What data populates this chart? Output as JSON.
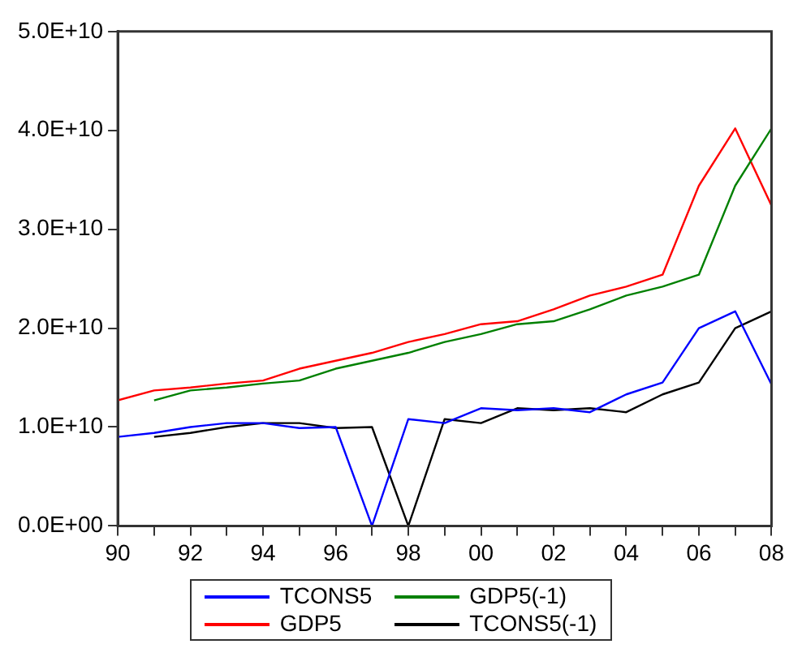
{
  "chart_data": {
    "type": "line",
    "x": [
      1990,
      1991,
      1992,
      1993,
      1994,
      1995,
      1996,
      1997,
      1998,
      1999,
      2000,
      2001,
      2002,
      2003,
      2004,
      2005,
      2006,
      2007,
      2008
    ],
    "series": [
      {
        "name": "TCONS5",
        "color": "#0000ff",
        "values": [
          9000000000.0,
          9400000000.0,
          10000000000.0,
          10400000000.0,
          10400000000.0,
          9900000000.0,
          10000000000.0,
          0,
          10800000000.0,
          10400000000.0,
          11900000000.0,
          11700000000.0,
          11900000000.0,
          11500000000.0,
          13300000000.0,
          14500000000.0,
          20000000000.0,
          21700000000.0,
          14300000000.0
        ]
      },
      {
        "name": "GDP5(-1)",
        "color": "#008000",
        "values": [
          null,
          12700000000.0,
          13700000000.0,
          14000000000.0,
          14400000000.0,
          14700000000.0,
          15900000000.0,
          16700000000.0,
          17500000000.0,
          18600000000.0,
          19400000000.0,
          20400000000.0,
          20700000000.0,
          21900000000.0,
          23300000000.0,
          24200000000.0,
          25400000000.0,
          34400000000.0,
          40200000000.0
        ]
      },
      {
        "name": "GDP5",
        "color": "#ff0000",
        "values": [
          12700000000.0,
          13700000000.0,
          14000000000.0,
          14400000000.0,
          14700000000.0,
          15900000000.0,
          16700000000.0,
          17500000000.0,
          18600000000.0,
          19400000000.0,
          20400000000.0,
          20700000000.0,
          21900000000.0,
          23300000000.0,
          24200000000.0,
          25400000000.0,
          34400000000.0,
          40200000000.0,
          32400000000.0
        ]
      },
      {
        "name": "TCONS5(-1)",
        "color": "#000000",
        "values": [
          null,
          9000000000.0,
          9400000000.0,
          10000000000.0,
          10400000000.0,
          10400000000.0,
          9900000000.0,
          10000000000.0,
          0,
          10800000000.0,
          10400000000.0,
          11900000000.0,
          11700000000.0,
          11900000000.0,
          11500000000.0,
          13300000000.0,
          14500000000.0,
          20000000000.0,
          21700000000.0
        ]
      }
    ],
    "xlim": [
      1990,
      2008
    ],
    "xticks": [
      {
        "value": 1990,
        "label": "90"
      },
      {
        "value": 1991,
        "label": null
      },
      {
        "value": 1992,
        "label": "92"
      },
      {
        "value": 1993,
        "label": null
      },
      {
        "value": 1994,
        "label": "94"
      },
      {
        "value": 1995,
        "label": null
      },
      {
        "value": 1996,
        "label": "96"
      },
      {
        "value": 1997,
        "label": null
      },
      {
        "value": 1998,
        "label": "98"
      },
      {
        "value": 1999,
        "label": null
      },
      {
        "value": 2000,
        "label": "00"
      },
      {
        "value": 2001,
        "label": null
      },
      {
        "value": 2002,
        "label": "02"
      },
      {
        "value": 2003,
        "label": null
      },
      {
        "value": 2004,
        "label": "04"
      },
      {
        "value": 2005,
        "label": null
      },
      {
        "value": 2006,
        "label": "06"
      },
      {
        "value": 2007,
        "label": null
      },
      {
        "value": 2008,
        "label": "08"
      }
    ],
    "ylim": [
      0,
      50000000000.0
    ],
    "yticks": [
      {
        "value": 0,
        "label": "0.0E+00"
      },
      {
        "value": 10000000000.0,
        "label": "1.0E+10"
      },
      {
        "value": 20000000000.0,
        "label": "2.0E+10"
      },
      {
        "value": 30000000000.0,
        "label": "3.0E+10"
      },
      {
        "value": 40000000000.0,
        "label": "4.0E+10"
      },
      {
        "value": 50000000000.0,
        "label": "5.0E+10"
      }
    ],
    "grid": false,
    "legend": "bottom",
    "marker": "none",
    "line_style": "solid"
  }
}
